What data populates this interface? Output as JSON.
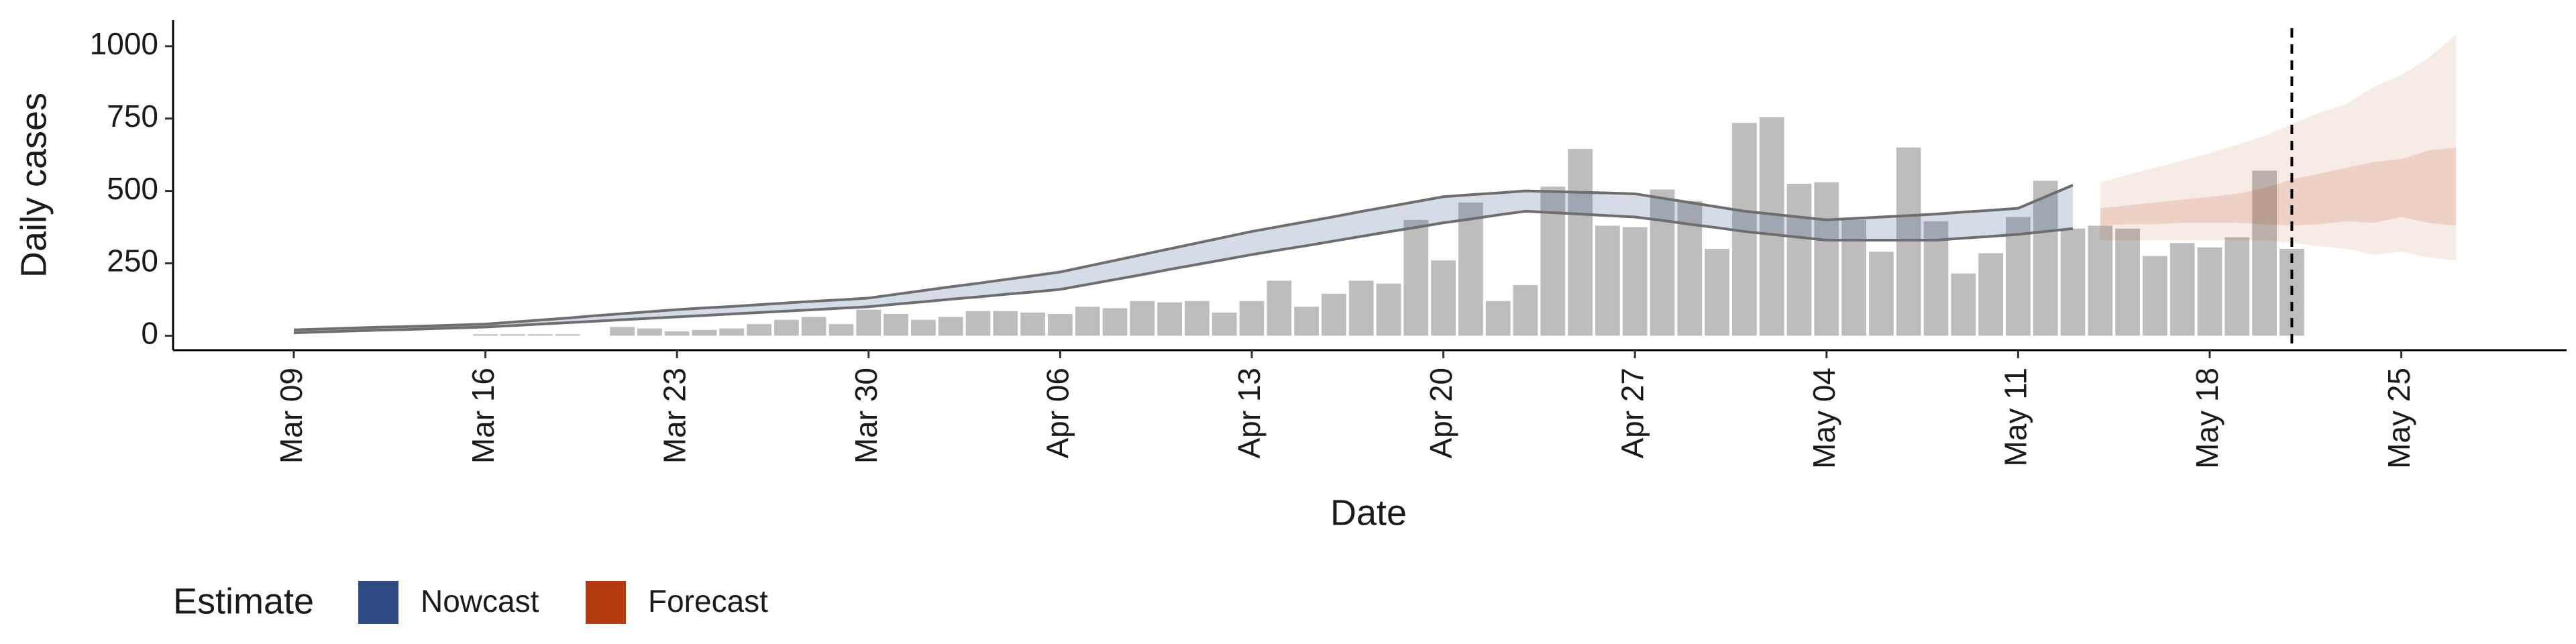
{
  "chart_data": {
    "type": "bar-band",
    "x_label": "Date",
    "y_label": "Daily cases",
    "legend_title": "Estimate",
    "categories": [
      "Mar 09",
      null,
      null,
      null,
      null,
      null,
      null,
      "Mar 16",
      null,
      null,
      null,
      null,
      null,
      null,
      "Mar 23",
      null,
      null,
      null,
      null,
      null,
      null,
      "Mar 30",
      null,
      null,
      null,
      null,
      null,
      null,
      "Apr 06",
      null,
      null,
      null,
      null,
      null,
      null,
      "Apr 13",
      null,
      null,
      null,
      null,
      null,
      null,
      "Apr 20",
      null,
      null,
      null,
      null,
      null,
      null,
      "Apr 27",
      null,
      null,
      null,
      null,
      null,
      null,
      "May 04",
      null,
      null,
      null,
      null,
      null,
      null,
      "May 11",
      null,
      null,
      null,
      null,
      null,
      null,
      "May 18",
      null,
      null,
      null,
      null,
      null,
      null,
      "May 25",
      null,
      null
    ],
    "bars": {
      "color": "#bdbdbd",
      "values": [
        0,
        0,
        0,
        0,
        0,
        0,
        0,
        5,
        5,
        5,
        5,
        0,
        30,
        25,
        15,
        20,
        25,
        40,
        55,
        65,
        40,
        90,
        75,
        55,
        65,
        85,
        85,
        80,
        75,
        100,
        95,
        120,
        115,
        120,
        80,
        120,
        190,
        100,
        145,
        190,
        180,
        400,
        260,
        460,
        120,
        175,
        515,
        645,
        380,
        375,
        505,
        465,
        300,
        735,
        755,
        525,
        530,
        400,
        290,
        650,
        395,
        215,
        285,
        410,
        535,
        370,
        380,
        370,
        275,
        320,
        305,
        340,
        570,
        300,
        null,
        null,
        null,
        null,
        null,
        null
      ]
    },
    "series": [
      {
        "name": "Nowcast",
        "color": "#2f4b85",
        "upper": [
          20,
          23,
          26,
          29,
          31,
          34,
          37,
          40,
          47,
          54,
          61,
          69,
          76,
          83,
          90,
          96,
          101,
          107,
          113,
          119,
          124,
          130,
          143,
          156,
          169,
          181,
          194,
          207,
          220,
          240,
          260,
          280,
          300,
          320,
          340,
          360,
          377,
          394,
          411,
          429,
          446,
          463,
          480,
          487,
          493,
          500,
          498,
          495,
          493,
          490,
          475,
          460,
          445,
          430,
          420,
          410,
          400,
          405,
          410,
          415,
          420,
          427,
          433,
          440,
          480,
          520,
          null,
          null,
          null,
          null,
          null,
          null,
          null,
          null,
          null,
          null,
          null,
          null,
          null,
          null
        ],
        "lower": [
          10,
          13,
          16,
          19,
          21,
          24,
          27,
          30,
          35,
          40,
          45,
          50,
          55,
          60,
          65,
          70,
          75,
          80,
          85,
          90,
          95,
          100,
          109,
          117,
          126,
          134,
          143,
          151,
          160,
          177,
          194,
          211,
          229,
          246,
          263,
          280,
          296,
          311,
          327,
          343,
          359,
          374,
          390,
          403,
          417,
          430,
          425,
          420,
          415,
          410,
          398,
          385,
          373,
          360,
          350,
          340,
          330,
          330,
          330,
          330,
          330,
          337,
          343,
          350,
          360,
          370,
          null,
          null,
          null,
          null,
          null,
          null,
          null,
          null,
          null,
          null,
          null,
          null,
          null,
          null
        ]
      },
      {
        "name": "Forecast",
        "color": "#b33a0c",
        "upper": [
          null,
          null,
          null,
          null,
          null,
          null,
          null,
          null,
          null,
          null,
          null,
          null,
          null,
          null,
          null,
          null,
          null,
          null,
          null,
          null,
          null,
          null,
          null,
          null,
          null,
          null,
          null,
          null,
          null,
          null,
          null,
          null,
          null,
          null,
          null,
          null,
          null,
          null,
          null,
          null,
          null,
          null,
          null,
          null,
          null,
          null,
          null,
          null,
          null,
          null,
          null,
          null,
          null,
          null,
          null,
          null,
          null,
          null,
          null,
          null,
          null,
          null,
          null,
          null,
          null,
          null,
          530,
          555,
          580,
          605,
          630,
          660,
          690,
          730,
          770,
          800,
          860,
          900,
          960,
          1040
        ],
        "lower": [
          null,
          null,
          null,
          null,
          null,
          null,
          null,
          null,
          null,
          null,
          null,
          null,
          null,
          null,
          null,
          null,
          null,
          null,
          null,
          null,
          null,
          null,
          null,
          null,
          null,
          null,
          null,
          null,
          null,
          null,
          null,
          null,
          null,
          null,
          null,
          null,
          null,
          null,
          null,
          null,
          null,
          null,
          null,
          null,
          null,
          null,
          null,
          null,
          null,
          null,
          null,
          null,
          null,
          null,
          null,
          null,
          null,
          null,
          null,
          null,
          null,
          null,
          null,
          null,
          null,
          null,
          330,
          330,
          330,
          330,
          330,
          330,
          330,
          320,
          310,
          300,
          280,
          290,
          270,
          260
        ],
        "inner_upper": [
          null,
          null,
          null,
          null,
          null,
          null,
          null,
          null,
          null,
          null,
          null,
          null,
          null,
          null,
          null,
          null,
          null,
          null,
          null,
          null,
          null,
          null,
          null,
          null,
          null,
          null,
          null,
          null,
          null,
          null,
          null,
          null,
          null,
          null,
          null,
          null,
          null,
          null,
          null,
          null,
          null,
          null,
          null,
          null,
          null,
          null,
          null,
          null,
          null,
          null,
          null,
          null,
          null,
          null,
          null,
          null,
          null,
          null,
          null,
          null,
          null,
          null,
          null,
          null,
          null,
          null,
          440,
          450,
          460,
          470,
          480,
          490,
          510,
          540,
          560,
          580,
          600,
          610,
          640,
          650
        ],
        "inner_lower": [
          null,
          null,
          null,
          null,
          null,
          null,
          null,
          null,
          null,
          null,
          null,
          null,
          null,
          null,
          null,
          null,
          null,
          null,
          null,
          null,
          null,
          null,
          null,
          null,
          null,
          null,
          null,
          null,
          null,
          null,
          null,
          null,
          null,
          null,
          null,
          null,
          null,
          null,
          null,
          null,
          null,
          null,
          null,
          null,
          null,
          null,
          null,
          null,
          null,
          null,
          null,
          null,
          null,
          null,
          null,
          null,
          null,
          null,
          null,
          null,
          null,
          null,
          null,
          null,
          null,
          null,
          380,
          385,
          385,
          390,
          390,
          390,
          385,
          380,
          385,
          395,
          390,
          410,
          390,
          380
        ]
      }
    ],
    "ylim": [
      -50,
      1090
    ],
    "yticks": [
      0,
      250,
      500,
      750,
      1000
    ]
  }
}
